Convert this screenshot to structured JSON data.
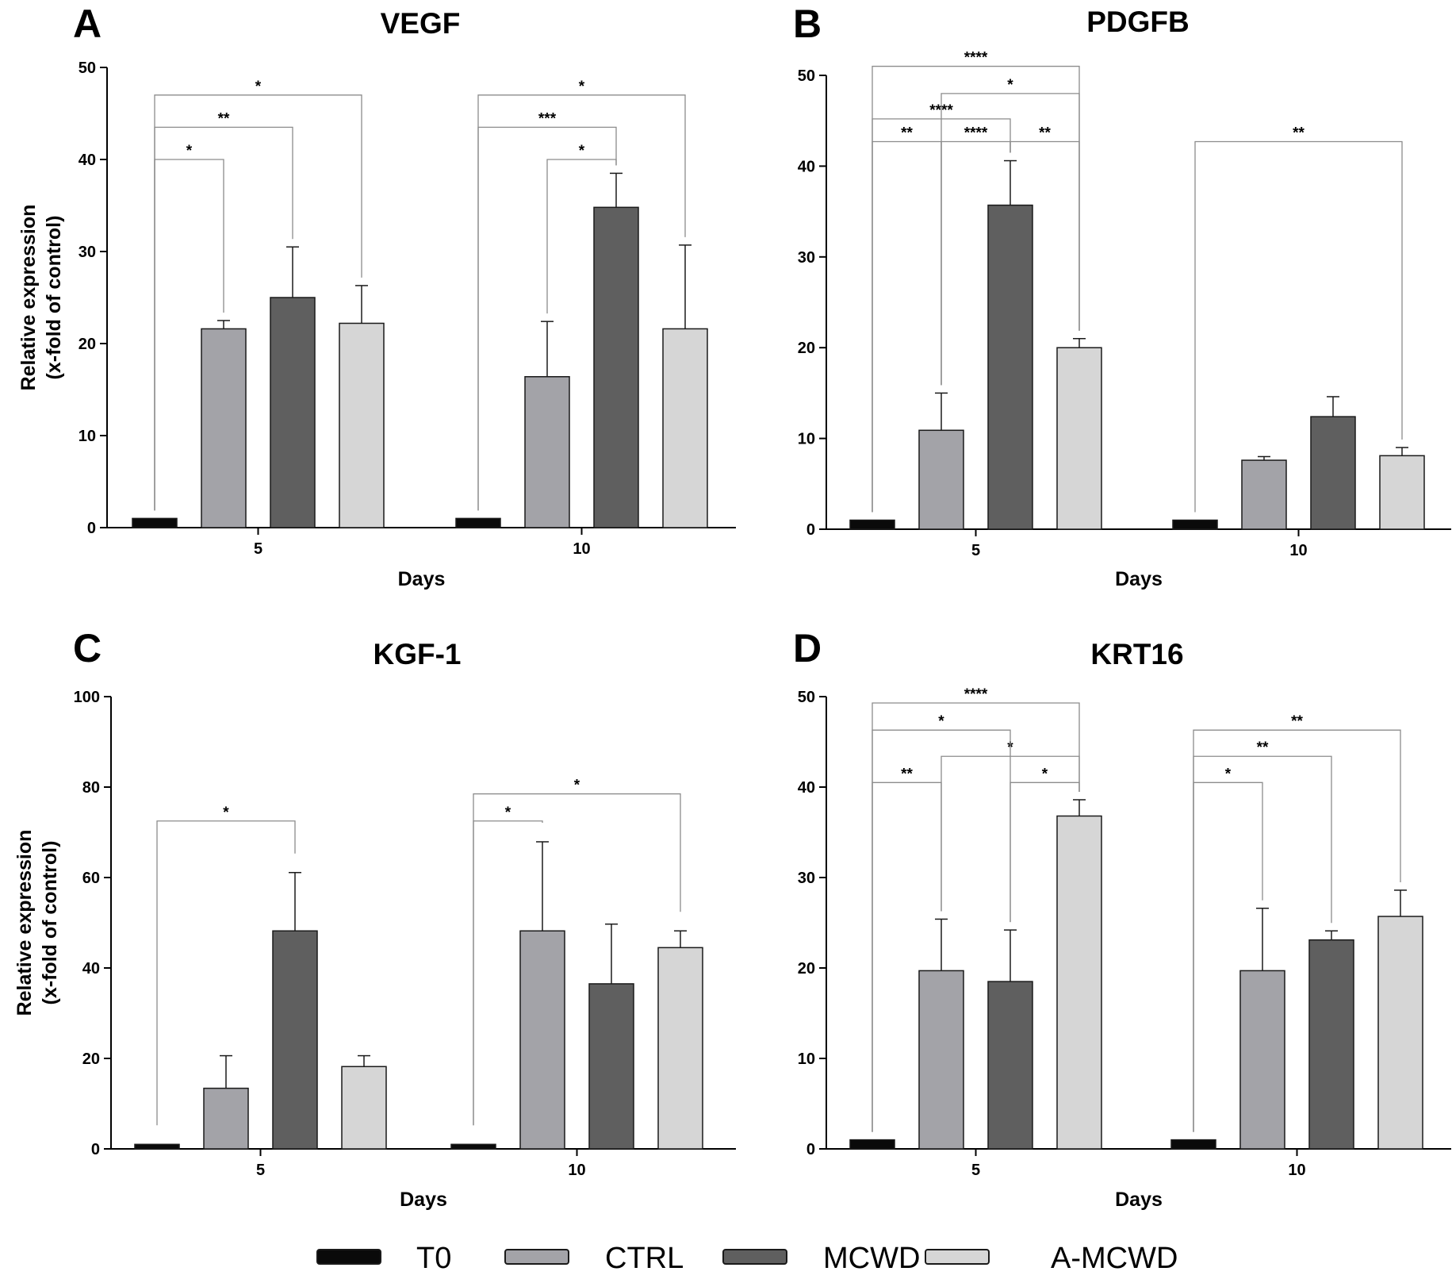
{
  "figure": {
    "y_axis_label_line1": "Relative expression",
    "y_axis_label_line2": "(x-fold of control)",
    "x_axis_label": "Days",
    "legend": [
      {
        "label": "T0",
        "color": "#0a0a0a"
      },
      {
        "label": "CTRL",
        "color": "#a3a3a8"
      },
      {
        "label": "MCWD",
        "color": "#5f5f5f"
      },
      {
        "label": "A-MCWD",
        "color": "#d6d6d6"
      }
    ]
  },
  "chart_data": [
    {
      "type": "bar",
      "panel_letter": "A",
      "title": "VEGF",
      "xlabel": "Days",
      "ylabel": "Relative expression (x-fold of control)",
      "categories": [
        "5",
        "10"
      ],
      "ylim": [
        0,
        50
      ],
      "yticks": [
        0,
        10,
        20,
        30,
        40,
        50
      ],
      "series": [
        {
          "name": "T0",
          "values": [
            1,
            1
          ],
          "errors": [
            0,
            0
          ]
        },
        {
          "name": "CTRL",
          "values": [
            21.6,
            16.4
          ],
          "errors": [
            0.9,
            6.0
          ]
        },
        {
          "name": "MCWD",
          "values": [
            25.0,
            34.8
          ],
          "errors": [
            5.5,
            3.7
          ]
        },
        {
          "name": "A-MCWD",
          "values": [
            22.2,
            21.6
          ],
          "errors": [
            4.1,
            9.1
          ]
        }
      ],
      "significance": [
        {
          "day": 0,
          "from": 0,
          "to": 1,
          "label": "*",
          "level": 40.0
        },
        {
          "day": 0,
          "from": 0,
          "to": 2,
          "label": "**",
          "level": 43.5
        },
        {
          "day": 0,
          "from": 0,
          "to": 3,
          "label": "*",
          "level": 47.0
        },
        {
          "day": 1,
          "from": 1,
          "to": 2,
          "label": "*",
          "level": 40.0
        },
        {
          "day": 1,
          "from": 0,
          "to": 2,
          "label": "***",
          "level": 43.5
        },
        {
          "day": 1,
          "from": 0,
          "to": 3,
          "label": "*",
          "level": 47.0
        }
      ]
    },
    {
      "type": "bar",
      "panel_letter": "B",
      "title": "PDGFB",
      "xlabel": "Days",
      "ylabel": "Relative expression (x-fold of control)",
      "categories": [
        "5",
        "10"
      ],
      "ylim": [
        0,
        50
      ],
      "yticks": [
        0,
        10,
        20,
        30,
        40,
        50
      ],
      "series": [
        {
          "name": "T0",
          "values": [
            1,
            1
          ],
          "errors": [
            0,
            0
          ]
        },
        {
          "name": "CTRL",
          "values": [
            10.9,
            7.6
          ],
          "errors": [
            4.1,
            0.4
          ]
        },
        {
          "name": "MCWD",
          "values": [
            35.7,
            12.4
          ],
          "errors": [
            4.9,
            2.2
          ]
        },
        {
          "name": "A-MCWD",
          "values": [
            20.0,
            8.1
          ],
          "errors": [
            1.0,
            0.9
          ]
        }
      ],
      "significance": [
        {
          "day": 0,
          "from": 0,
          "to": 1,
          "label": "**",
          "level": 42.7
        },
        {
          "day": 0,
          "from": 1,
          "to": 2,
          "label": "****",
          "level": 42.7
        },
        {
          "day": 0,
          "from": 2,
          "to": 3,
          "label": "**",
          "level": 42.7
        },
        {
          "day": 0,
          "from": 0,
          "to": 2,
          "label": "****",
          "level": 45.2
        },
        {
          "day": 0,
          "from": 1,
          "to": 3,
          "label": "*",
          "level": 48.0
        },
        {
          "day": 0,
          "from": 0,
          "to": 3,
          "label": "****",
          "level": 51.0
        },
        {
          "day": 1,
          "from": 0,
          "to": 3,
          "label": "**",
          "level": 42.7
        }
      ]
    },
    {
      "type": "bar",
      "panel_letter": "C",
      "title": "KGF-1",
      "xlabel": "Days",
      "ylabel": "Relative expression (x-fold of control)",
      "categories": [
        "5",
        "10"
      ],
      "ylim": [
        0,
        100
      ],
      "yticks": [
        0,
        20,
        40,
        60,
        80,
        100
      ],
      "series": [
        {
          "name": "T0",
          "values": [
            1,
            1
          ],
          "errors": [
            0,
            0
          ]
        },
        {
          "name": "CTRL",
          "values": [
            13.4,
            48.2
          ],
          "errors": [
            7.2,
            19.7
          ]
        },
        {
          "name": "MCWD",
          "values": [
            48.2,
            36.5
          ],
          "errors": [
            12.9,
            13.2
          ]
        },
        {
          "name": "A-MCWD",
          "values": [
            18.2,
            44.5
          ],
          "errors": [
            2.4,
            3.7
          ]
        }
      ],
      "significance": [
        {
          "day": 0,
          "from": 0,
          "to": 2,
          "label": "*",
          "level": 72.5
        },
        {
          "day": 1,
          "from": 0,
          "to": 1,
          "label": "*",
          "level": 72.5
        },
        {
          "day": 1,
          "from": 0,
          "to": 3,
          "label": "*",
          "level": 78.5
        }
      ]
    },
    {
      "type": "bar",
      "panel_letter": "D",
      "title": "KRT16",
      "xlabel": "Days",
      "ylabel": "Relative expression (x-fold of control)",
      "categories": [
        "5",
        "10"
      ],
      "ylim": [
        0,
        50
      ],
      "yticks": [
        0,
        10,
        20,
        30,
        40,
        50
      ],
      "series": [
        {
          "name": "T0",
          "values": [
            1,
            1
          ],
          "errors": [
            0,
            0
          ]
        },
        {
          "name": "CTRL",
          "values": [
            19.7,
            19.7
          ],
          "errors": [
            5.7,
            6.9
          ]
        },
        {
          "name": "MCWD",
          "values": [
            18.5,
            23.1
          ],
          "errors": [
            5.7,
            1.0
          ]
        },
        {
          "name": "A-MCWD",
          "values": [
            36.8,
            25.7
          ],
          "errors": [
            1.8,
            2.9
          ]
        }
      ],
      "significance": [
        {
          "day": 0,
          "from": 0,
          "to": 1,
          "label": "**",
          "level": 40.5
        },
        {
          "day": 0,
          "from": 2,
          "to": 3,
          "label": "*",
          "level": 40.5
        },
        {
          "day": 0,
          "from": 1,
          "to": 3,
          "label": "*",
          "level": 43.4
        },
        {
          "day": 0,
          "from": 0,
          "to": 2,
          "label": "*",
          "level": 46.3
        },
        {
          "day": 0,
          "from": 0,
          "to": 3,
          "label": "****",
          "level": 49.3
        },
        {
          "day": 1,
          "from": 0,
          "to": 1,
          "label": "*",
          "level": 40.5
        },
        {
          "day": 1,
          "from": 0,
          "to": 2,
          "label": "**",
          "level": 43.4
        },
        {
          "day": 1,
          "from": 0,
          "to": 3,
          "label": "**",
          "level": 46.3
        }
      ]
    }
  ]
}
